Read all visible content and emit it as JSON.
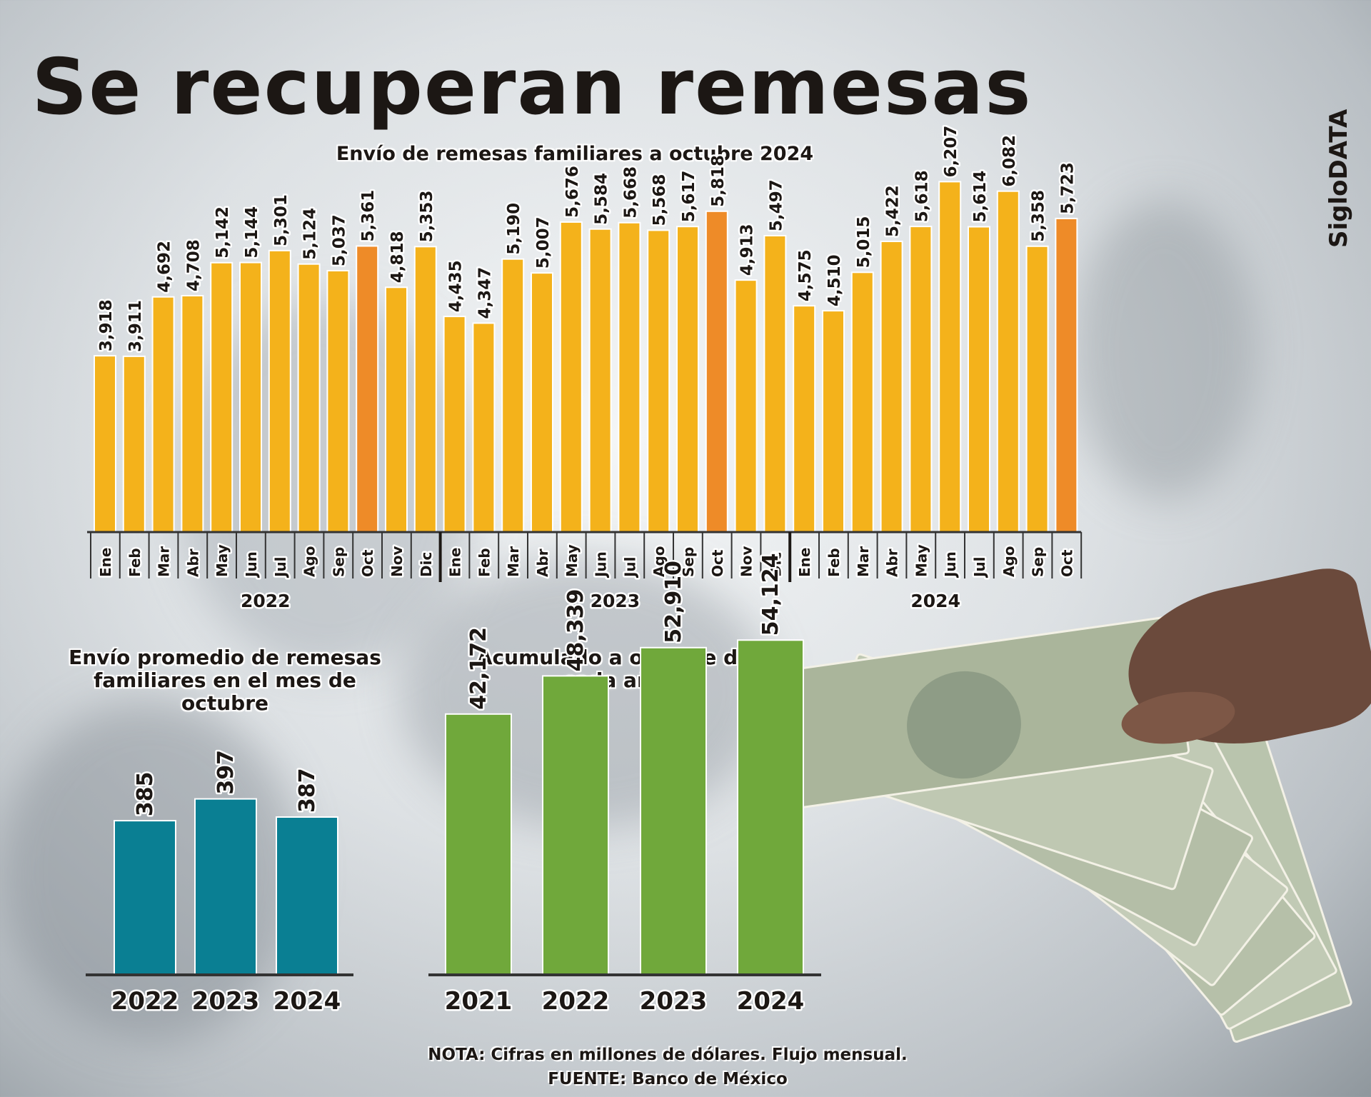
{
  "title": "Se recuperan remesas",
  "brand": "SigloDATA",
  "notes": {
    "nota": "NOTA: Cifras en millones de dólares. Flujo mensual.",
    "fuente": "FUENTE: Banco de México"
  },
  "colors": {
    "yellow": "#f4b21b",
    "orange": "#ee8b28",
    "teal": "#0a7f93",
    "green": "#70a83b"
  },
  "chart_data": [
    {
      "type": "bar",
      "title": "Envío de remesas familiares a octubre 2024",
      "xlabel": "",
      "ylabel": "",
      "ylim": [
        0,
        6500
      ],
      "categories": [
        "Ene",
        "Feb",
        "Mar",
        "Abr",
        "May",
        "Jun",
        "Jul",
        "Ago",
        "Sep",
        "Oct",
        "Nov",
        "Dic",
        "Ene",
        "Feb",
        "Mar",
        "Abr",
        "May",
        "Jun",
        "Jul",
        "Ago",
        "Sep",
        "Oct",
        "Nov",
        "Dic",
        "Ene",
        "Feb",
        "Mar",
        "Abr",
        "May",
        "Jun",
        "Jul",
        "Ago",
        "Sep",
        "Oct"
      ],
      "value_labels": [
        "3,918",
        "3,911",
        "4,692",
        "4,708",
        "5,142",
        "5,144",
        "5,301",
        "5,124",
        "5,037",
        "5,361",
        "4,818",
        "5,353",
        "4,435",
        "4,347",
        "5,190",
        "5,007",
        "5,676",
        "5,584",
        "5,668",
        "5,568",
        "5,617",
        "5,818",
        "4,913",
        "5,497",
        "4,575",
        "4,510",
        "5,015",
        "5,422",
        "5,618",
        "6,207",
        "5,614",
        "6,082",
        "5,358",
        "5,723"
      ],
      "values": [
        3918,
        3911,
        4692,
        4708,
        5142,
        5144,
        5301,
        5124,
        5037,
        5361,
        4818,
        5353,
        4435,
        4347,
        5190,
        5007,
        5676,
        5584,
        5668,
        5568,
        5617,
        5818,
        4913,
        5497,
        4575,
        4510,
        5015,
        5422,
        5618,
        6207,
        5614,
        6082,
        5358,
        5723
      ],
      "highlight": [
        false,
        false,
        false,
        false,
        false,
        false,
        false,
        false,
        false,
        true,
        false,
        false,
        false,
        false,
        false,
        false,
        false,
        false,
        false,
        false,
        false,
        true,
        false,
        false,
        false,
        false,
        false,
        false,
        false,
        false,
        false,
        false,
        false,
        true
      ],
      "year_groups": [
        {
          "label": "2022",
          "count": 12
        },
        {
          "label": "2023",
          "count": 12
        },
        {
          "label": "2024",
          "count": 10
        }
      ]
    },
    {
      "type": "bar",
      "title": "Envío promedio de remesas familiares en el mes de octubre",
      "title_lines": [
        "Envío promedio de remesas",
        "familiares en el mes de octubre"
      ],
      "categories": [
        "2022",
        "2023",
        "2024"
      ],
      "values": [
        385,
        397,
        387
      ],
      "value_labels": [
        "385",
        "397",
        "387"
      ],
      "ylim": [
        300,
        400
      ]
    },
    {
      "type": "bar",
      "title": "Acumulado a octubre de cada año",
      "title_lines": [
        "Acumulado a octubre de",
        "cada año"
      ],
      "categories": [
        "2021",
        "2022",
        "2023",
        "2024"
      ],
      "values": [
        42172,
        48339,
        52910,
        54124
      ],
      "value_labels": [
        "42,172",
        "48,339",
        "52,910",
        "54,124"
      ],
      "ylim": [
        0,
        56000
      ]
    }
  ]
}
